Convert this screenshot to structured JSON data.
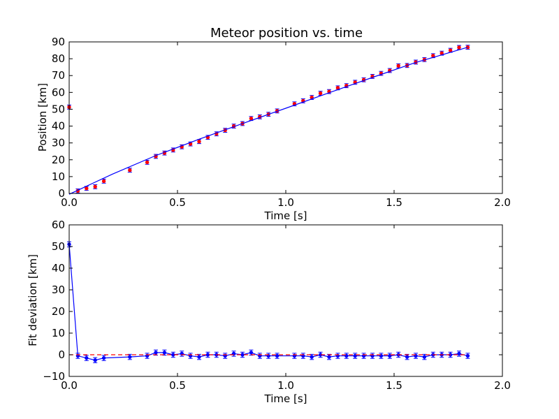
{
  "chart_data": [
    {
      "type": "scatter",
      "title": "Meteor position vs. time",
      "xlabel": "Time [s]",
      "ylabel": "Position [km]",
      "xlim": [
        0,
        2.0
      ],
      "ylim": [
        0,
        90
      ],
      "xticks": [
        "0.0",
        "0.5",
        "1.0",
        "1.5",
        "2.0"
      ],
      "yticks": [
        "0",
        "10",
        "20",
        "30",
        "40",
        "50",
        "60",
        "70",
        "80",
        "90"
      ],
      "grid": false,
      "series": [
        {
          "style": "points-with-errorbars",
          "color": "#ff0000",
          "x": [
            0.0,
            0.04,
            0.08,
            0.12,
            0.16,
            0.28,
            0.36,
            0.4,
            0.44,
            0.48,
            0.52,
            0.56,
            0.6,
            0.64,
            0.68,
            0.72,
            0.76,
            0.8,
            0.84,
            0.88,
            0.92,
            0.96,
            1.04,
            1.08,
            1.12,
            1.16,
            1.2,
            1.24,
            1.28,
            1.32,
            1.36,
            1.4,
            1.44,
            1.48,
            1.52,
            1.56,
            1.6,
            1.64,
            1.68,
            1.72,
            1.76,
            1.8,
            1.84
          ],
          "y": [
            51.3,
            1.5,
            3.0,
            4.0,
            7.3,
            13.8,
            18.5,
            22.0,
            24.0,
            25.8,
            27.7,
            29.4,
            30.8,
            33.3,
            35.4,
            37.5,
            40.0,
            41.5,
            44.5,
            45.5,
            47.0,
            49.0,
            53.2,
            55.0,
            57.0,
            59.5,
            60.5,
            62.7,
            64.0,
            66.0,
            67.5,
            69.5,
            71.3,
            73.0,
            75.8,
            76.0,
            78.0,
            79.5,
            81.8,
            83.3,
            85.0,
            86.7,
            86.8
          ],
          "yerr": 1.2
        },
        {
          "style": "line",
          "color": "#0000ff",
          "x": [
            0.0,
            0.2,
            0.4,
            0.6,
            0.8,
            1.0,
            1.2,
            1.4,
            1.6,
            1.84
          ],
          "y": [
            -0.5,
            11.5,
            22.5,
            32.2,
            41.5,
            50.6,
            59.8,
            68.9,
            77.8,
            86.8
          ]
        }
      ]
    },
    {
      "type": "line",
      "title": "",
      "xlabel": "Time [s]",
      "ylabel": "Fit deviation [km]",
      "xlim": [
        0,
        2.0
      ],
      "ylim": [
        -10,
        60
      ],
      "xticks": [
        "0.0",
        "0.5",
        "1.0",
        "1.5",
        "2.0"
      ],
      "yticks": [
        "−10",
        "0",
        "10",
        "20",
        "30",
        "40",
        "50",
        "60"
      ],
      "grid": false,
      "series": [
        {
          "style": "line-with-errorbars",
          "color": "#0000ff",
          "x": [
            0.0,
            0.04,
            0.08,
            0.12,
            0.16,
            0.28,
            0.36,
            0.4,
            0.44,
            0.48,
            0.52,
            0.56,
            0.6,
            0.64,
            0.68,
            0.72,
            0.76,
            0.8,
            0.84,
            0.88,
            0.92,
            0.96,
            1.04,
            1.08,
            1.12,
            1.16,
            1.2,
            1.24,
            1.28,
            1.32,
            1.36,
            1.4,
            1.44,
            1.48,
            1.52,
            1.56,
            1.6,
            1.64,
            1.68,
            1.72,
            1.76,
            1.8,
            1.84
          ],
          "y": [
            51.0,
            -0.5,
            -1.5,
            -2.5,
            -1.5,
            -1.0,
            -0.5,
            1.0,
            1.0,
            0.0,
            0.5,
            -0.5,
            -1.0,
            0.0,
            0.0,
            -0.5,
            0.5,
            0.0,
            1.0,
            -0.5,
            -0.5,
            -0.5,
            -0.5,
            -0.5,
            -1.0,
            0.0,
            -1.0,
            -0.5,
            -0.5,
            -0.5,
            -0.5,
            -0.5,
            -0.5,
            -0.5,
            0.0,
            -1.0,
            -0.5,
            -1.0,
            0.0,
            0.0,
            0.0,
            0.5,
            -0.5
          ],
          "yerr": 1.2
        },
        {
          "style": "dashed-line",
          "color": "#ff0000",
          "x": [
            0.0,
            1.84
          ],
          "y": [
            0,
            0
          ]
        }
      ]
    }
  ]
}
